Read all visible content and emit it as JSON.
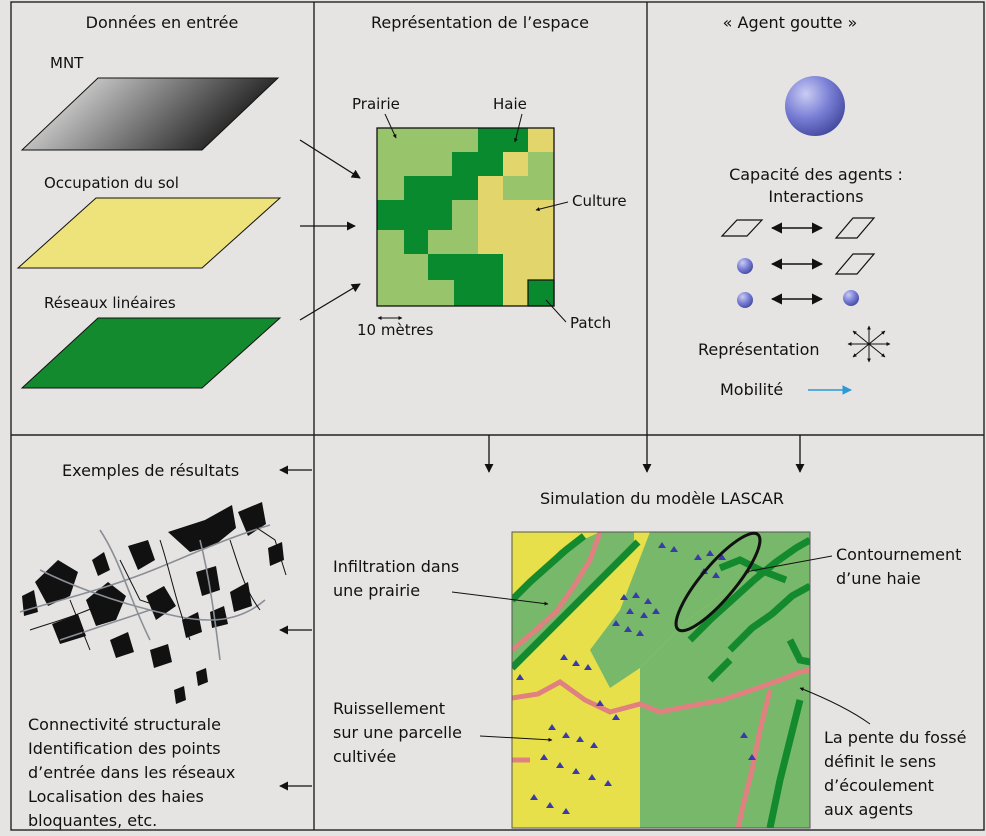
{
  "panels": {
    "input": {
      "title": "Données en entrée",
      "layers": [
        {
          "label": "MNT",
          "fill": "gradient-grey"
        },
        {
          "label": "Occupation du sol",
          "fill": "#ede37a"
        },
        {
          "label": "Réseaux linéaires",
          "fill": "#148a2e"
        }
      ]
    },
    "space": {
      "title": "Représentation de l’espace",
      "labels": {
        "prairie": "Prairie",
        "haie": "Haie",
        "culture": "Culture",
        "patch": "Patch",
        "scale": "10 mètres"
      },
      "colors": {
        "prairie": "#98c46c",
        "haie": "#0a8a2e",
        "culture": "#e2d56c"
      }
    },
    "agent": {
      "title": "« Agent goutte »",
      "capacity_line1": "Capacité des agents :",
      "capacity_line2": "Interactions",
      "representation": "Représentation",
      "mobility": "Mobilité",
      "colors": {
        "sphere": "#6a6fc9",
        "arrow": "#2a9ad6"
      }
    },
    "results": {
      "title": "Exemples de résultats",
      "lines": [
        "Connectivité structurale",
        "Identification des points",
        "d’entrée dans les réseaux",
        "Localisation des haies",
        "bloquantes, etc."
      ]
    },
    "simulation": {
      "title": "Simulation du modèle LASCAR",
      "infiltration": [
        "Infiltration dans",
        "une prairie"
      ],
      "runoff": [
        "Ruissellement",
        "sur une parcelle",
        "cultivée"
      ],
      "bypass": [
        "Contournement",
        "d’une haie"
      ],
      "slope": [
        "La pente du fossé",
        "définit le sens",
        "d’écoulement",
        "aux agents"
      ],
      "colors": {
        "crop": "#e8e04a",
        "grass": "#78b86a",
        "hedge": "#148a2e",
        "ditch": "#e08080",
        "agent": "#3a3aa8"
      }
    }
  }
}
